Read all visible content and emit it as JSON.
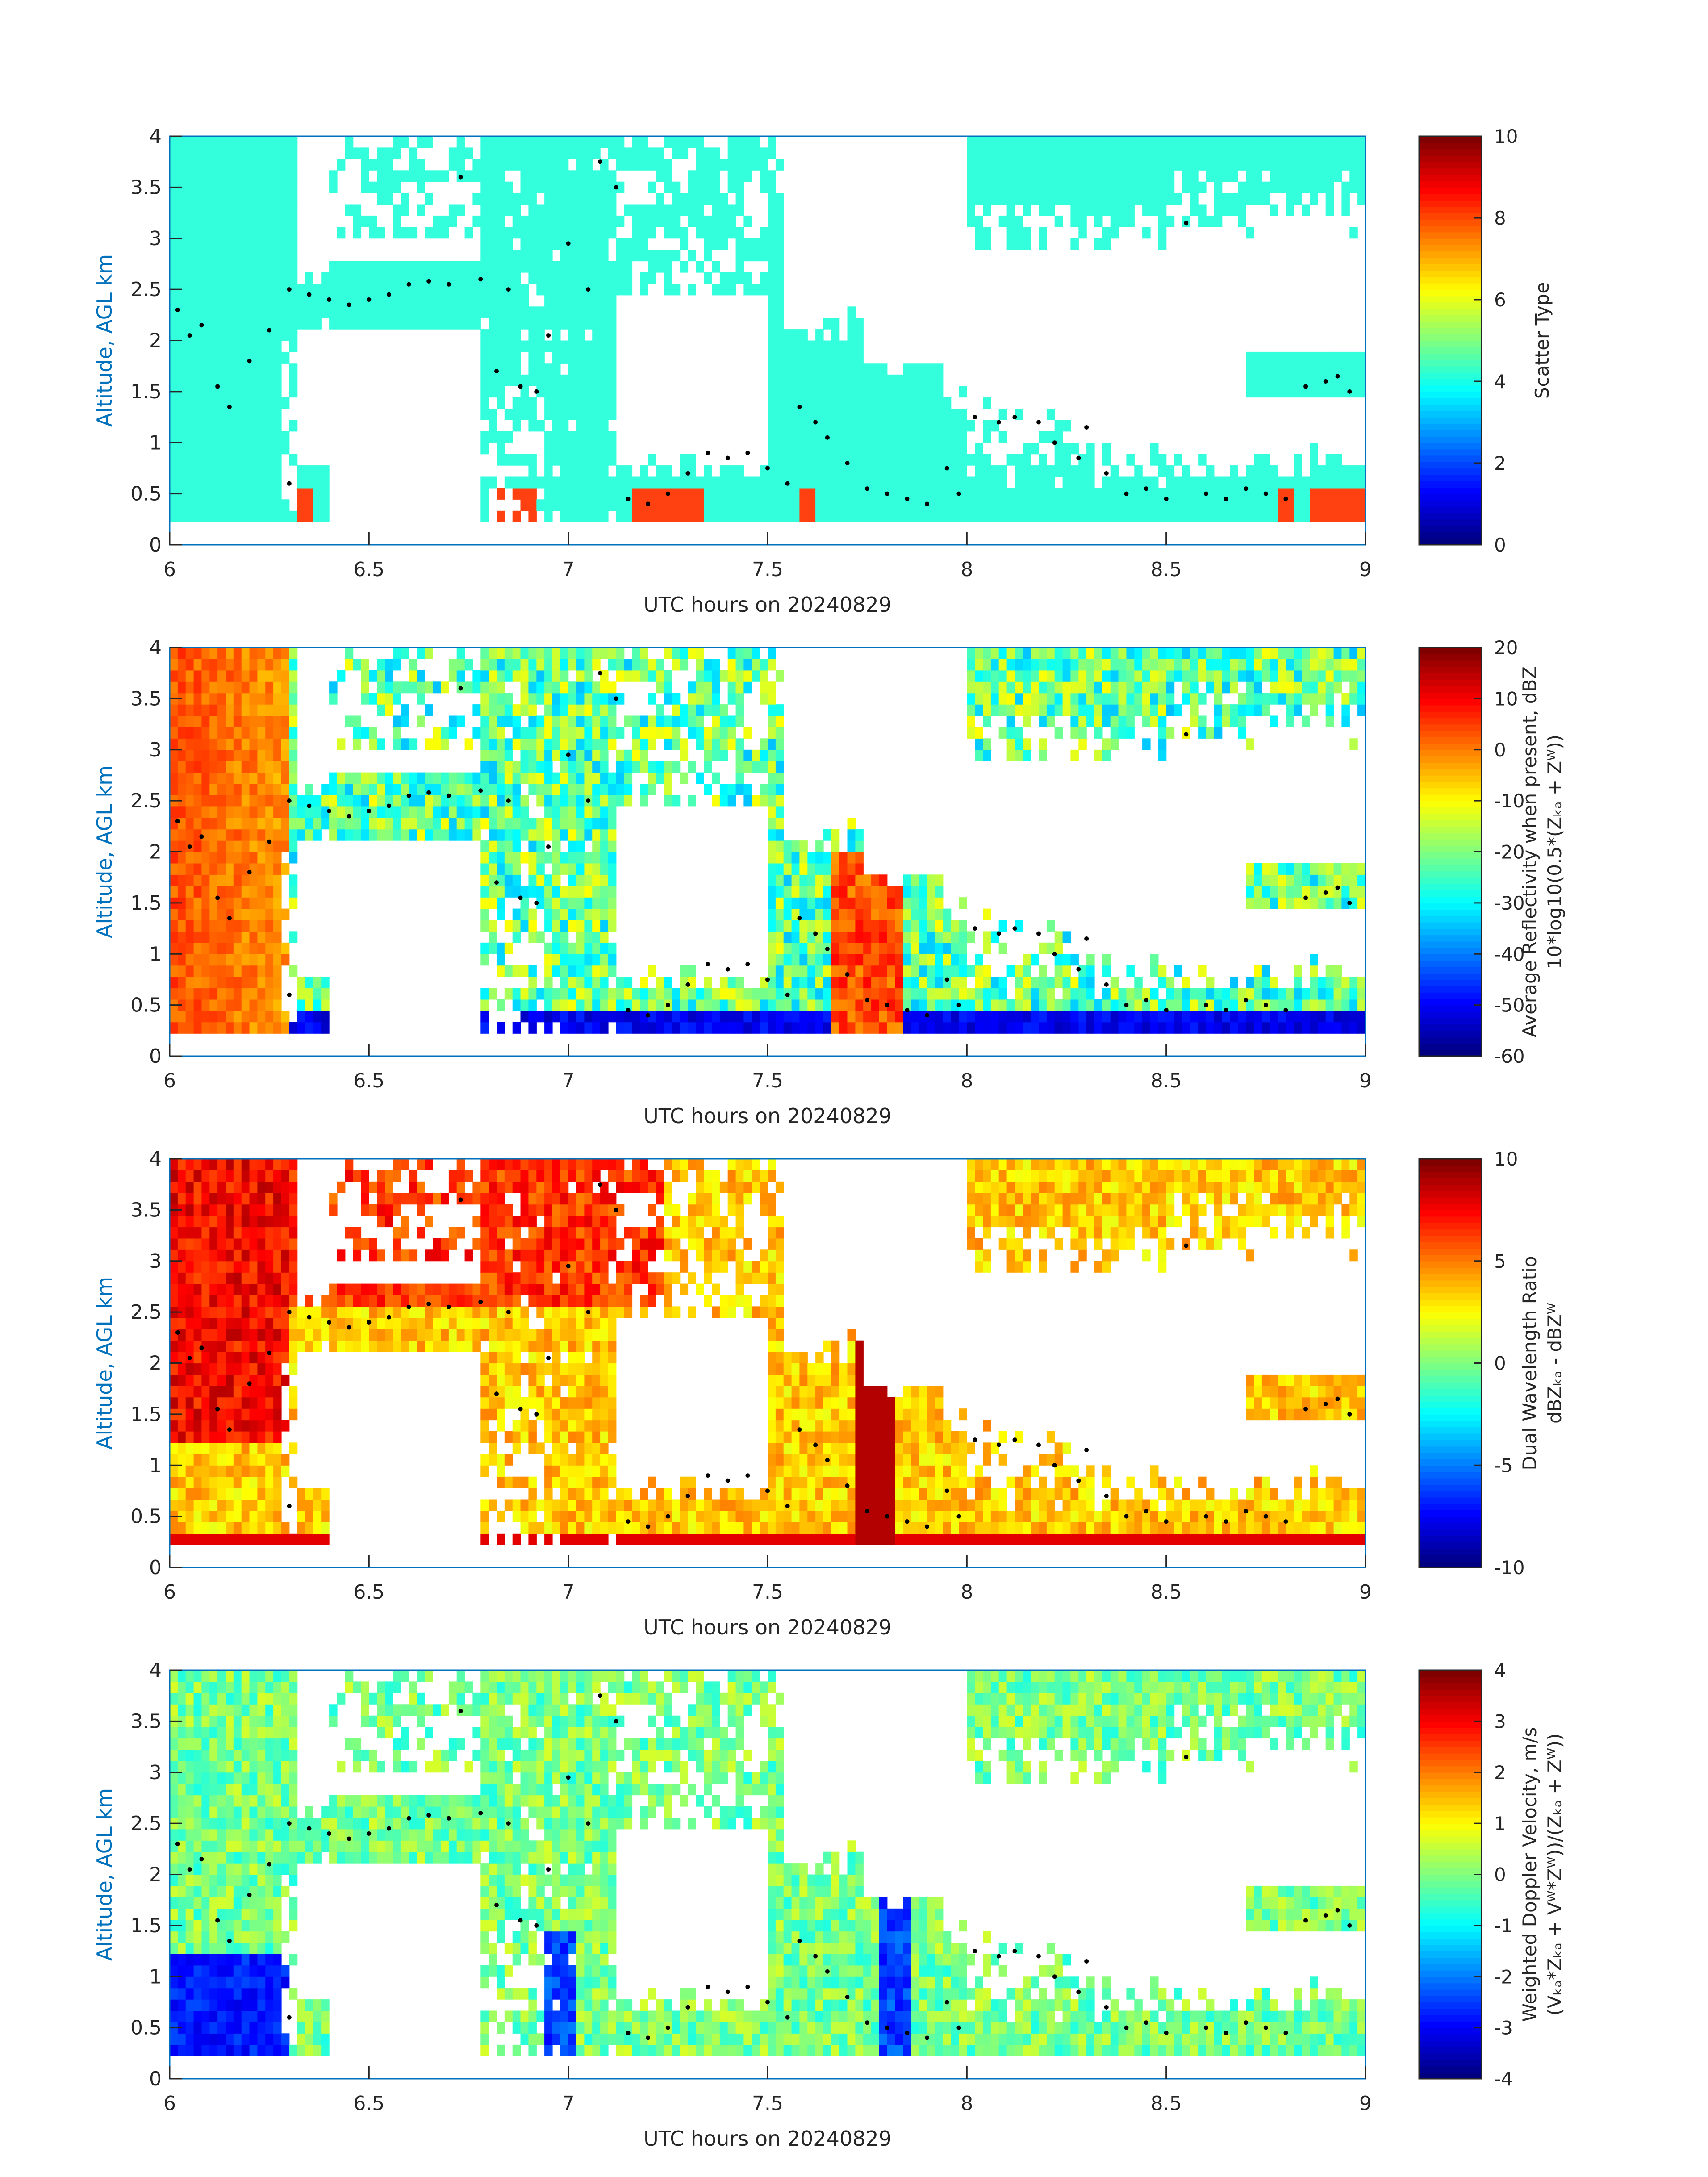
{
  "figure": {
    "x_axis_label": "UTC hours on 20240829",
    "y_axis_label": "Altitude, AGL km",
    "x_ticks": [
      "6",
      "6.5",
      "7",
      "7.5",
      "8",
      "8.5",
      "9"
    ],
    "y_ticks": [
      "0",
      "0.5",
      "1",
      "1.5",
      "2",
      "2.5",
      "3",
      "3.5",
      "4"
    ],
    "axis_color": "#0072BD"
  },
  "chart_data": [
    {
      "type": "heatmap",
      "title": "",
      "xlabel": "UTC hours on 20240829",
      "ylabel": "Altitude, AGL km",
      "xlim": [
        6,
        9
      ],
      "ylim": [
        0,
        4
      ],
      "colorbar": {
        "label_lines": [
          "Scatter Type"
        ],
        "range": [
          0,
          10
        ],
        "ticks": [
          "0",
          "2",
          "4",
          "6",
          "8",
          "10"
        ],
        "colormap": "jet"
      },
      "field": "scatter",
      "palette": [
        "#33FFDD",
        "#FF4010"
      ]
    },
    {
      "type": "heatmap",
      "title": "",
      "xlabel": "UTC hours on 20240829",
      "ylabel": "Altitude, AGL km",
      "xlim": [
        6,
        9
      ],
      "ylim": [
        0,
        4
      ],
      "colorbar": {
        "label_lines": [
          "Average Reflectivity when present, dBZ",
          "10*log10(0.5*(Z_Ka + Z_W))"
        ],
        "range": [
          -60,
          20
        ],
        "ticks": [
          "-60",
          "-50",
          "-40",
          "-30",
          "-20",
          "-10",
          "0",
          "10",
          "20"
        ],
        "colormap": "jet"
      },
      "field": "reflectivity"
    },
    {
      "type": "heatmap",
      "title": "",
      "xlabel": "UTC hours on 20240829",
      "ylabel": "Altitude, AGL km",
      "xlim": [
        6,
        9
      ],
      "ylim": [
        0,
        4
      ],
      "colorbar": {
        "label_lines": [
          "Dual Wavelength Ratio",
          "dBZ_Ka - dBZ_W"
        ],
        "range": [
          -10,
          10
        ],
        "ticks": [
          "-10",
          "-5",
          "0",
          "5",
          "10"
        ],
        "colormap": "jet"
      },
      "field": "dwr"
    },
    {
      "type": "heatmap",
      "title": "",
      "xlabel": "UTC hours on 20240829",
      "ylabel": "Altitude, AGL km",
      "xlim": [
        6,
        9
      ],
      "ylim": [
        0,
        4
      ],
      "colorbar": {
        "label_lines": [
          "Weighted Doppler Velocity, m/s",
          "(V_Ka*Z_Ka + V_W*Z_W))/(Z_Ka + Z_W))"
        ],
        "range": [
          -4,
          4
        ],
        "ticks": [
          "-4",
          "-3",
          "-2",
          "-1",
          "0",
          "1",
          "2",
          "3",
          "4"
        ],
        "colormap": "jet"
      },
      "field": "velocity"
    }
  ],
  "cloud_base_dots": [
    [
      6.02,
      2.3
    ],
    [
      6.05,
      2.05
    ],
    [
      6.08,
      2.15
    ],
    [
      6.12,
      1.55
    ],
    [
      6.15,
      1.35
    ],
    [
      6.2,
      1.8
    ],
    [
      6.25,
      2.1
    ],
    [
      6.3,
      0.6
    ],
    [
      6.3,
      2.5
    ],
    [
      6.35,
      2.45
    ],
    [
      6.4,
      2.4
    ],
    [
      6.45,
      2.35
    ],
    [
      6.5,
      2.4
    ],
    [
      6.55,
      2.45
    ],
    [
      6.6,
      2.55
    ],
    [
      6.65,
      2.58
    ],
    [
      6.7,
      2.55
    ],
    [
      6.73,
      3.6
    ],
    [
      6.78,
      2.6
    ],
    [
      6.82,
      1.7
    ],
    [
      6.85,
      2.5
    ],
    [
      6.88,
      1.55
    ],
    [
      6.92,
      1.5
    ],
    [
      6.95,
      2.05
    ],
    [
      7.0,
      2.95
    ],
    [
      7.05,
      2.5
    ],
    [
      7.08,
      3.75
    ],
    [
      7.12,
      3.5
    ],
    [
      7.15,
      0.45
    ],
    [
      7.2,
      0.4
    ],
    [
      7.25,
      0.5
    ],
    [
      7.3,
      0.7
    ],
    [
      7.35,
      0.9
    ],
    [
      7.4,
      0.85
    ],
    [
      7.45,
      0.9
    ],
    [
      7.5,
      0.75
    ],
    [
      7.55,
      0.6
    ],
    [
      7.58,
      1.35
    ],
    [
      7.62,
      1.2
    ],
    [
      7.65,
      1.05
    ],
    [
      7.7,
      0.8
    ],
    [
      7.75,
      0.55
    ],
    [
      7.8,
      0.5
    ],
    [
      7.85,
      0.45
    ],
    [
      7.9,
      0.4
    ],
    [
      7.95,
      0.75
    ],
    [
      7.98,
      0.5
    ],
    [
      8.02,
      1.25
    ],
    [
      8.08,
      1.2
    ],
    [
      8.12,
      1.25
    ],
    [
      8.18,
      1.2
    ],
    [
      8.22,
      1.0
    ],
    [
      8.28,
      0.85
    ],
    [
      8.3,
      1.15
    ],
    [
      8.35,
      0.7
    ],
    [
      8.4,
      0.5
    ],
    [
      8.45,
      0.55
    ],
    [
      8.5,
      0.45
    ],
    [
      8.55,
      3.15
    ],
    [
      8.6,
      0.5
    ],
    [
      8.65,
      0.45
    ],
    [
      8.7,
      0.55
    ],
    [
      8.75,
      0.5
    ],
    [
      8.8,
      0.45
    ],
    [
      8.85,
      1.55
    ],
    [
      8.9,
      1.6
    ],
    [
      8.93,
      1.65
    ],
    [
      8.96,
      1.5
    ]
  ]
}
